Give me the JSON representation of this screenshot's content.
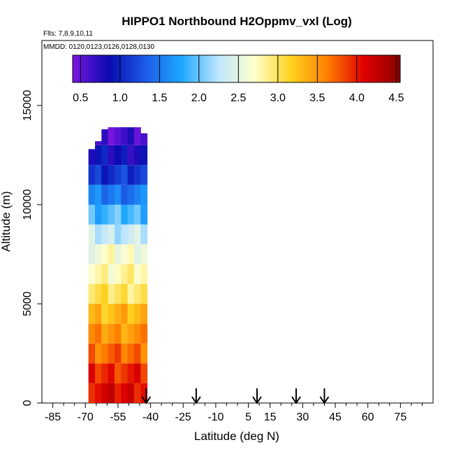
{
  "chart_data": {
    "type": "heatmap",
    "title": "HIPPO1 Northbound H2Oppmv_vxl (Log)",
    "flights_text": "Flts: 7,8,9,10,11",
    "mmdd_text": "MMDD: 0120,0123,0126,0128,0130",
    "xlabel": "Latitude (deg N)",
    "ylabel": "Altitude (m)",
    "xlim": [
      -90,
      90
    ],
    "ylim": [
      0,
      15500
    ],
    "x_ticks": [
      -85,
      -70,
      -55,
      -40,
      -25,
      -10,
      5,
      15,
      30,
      45,
      60,
      75
    ],
    "x_tick_labels": [
      "-85",
      "-70",
      "-55",
      "-40",
      "-25",
      "-10",
      "5",
      "15",
      "30",
      "45",
      "60",
      "75"
    ],
    "y_ticks": [
      0,
      5000,
      10000,
      15000
    ],
    "y_tick_labels": [
      "0",
      "5000",
      "10000",
      "15000"
    ],
    "colorbar": {
      "range": [
        0.4,
        4.55
      ],
      "ticks": [
        0.5,
        1.0,
        1.5,
        2.0,
        2.5,
        3.0,
        3.5,
        4.0,
        4.5
      ],
      "tick_labels": [
        "0.5",
        "1.0",
        "1.5",
        "2.0",
        "2.5",
        "3.0",
        "3.5",
        "4.0",
        "4.5"
      ],
      "colors": [
        "#7a16e0",
        "#0a0ab0",
        "#1b5be6",
        "#1ea8ff",
        "#bfe6ff",
        "#ffffcc",
        "#ffd21f",
        "#ff7f00",
        "#e00000",
        "#8b0000"
      ]
    },
    "profile_latitudes": [
      -67,
      -64,
      -61,
      -58,
      -55,
      -52,
      -49,
      -46,
      -43
    ],
    "profile_tops": [
      12800,
      13200,
      13800,
      13900,
      13900,
      13900,
      13900,
      13900,
      13600
    ],
    "altitude_bins": [
      0,
      1000,
      2000,
      3000,
      4000,
      5000,
      6000,
      7000,
      8000,
      9000,
      10000,
      11000,
      12000,
      13000,
      14000
    ],
    "log_h2o_profile": [
      4.1,
      3.95,
      3.7,
      3.5,
      3.3,
      3.0,
      2.8,
      2.65,
      2.3,
      1.9,
      1.5,
      1.1,
      0.85,
      0.6,
      0.45
    ],
    "flight_latitudes_markers": [
      -42,
      -19,
      9,
      27,
      40
    ],
    "grid": false,
    "legend": "top"
  }
}
